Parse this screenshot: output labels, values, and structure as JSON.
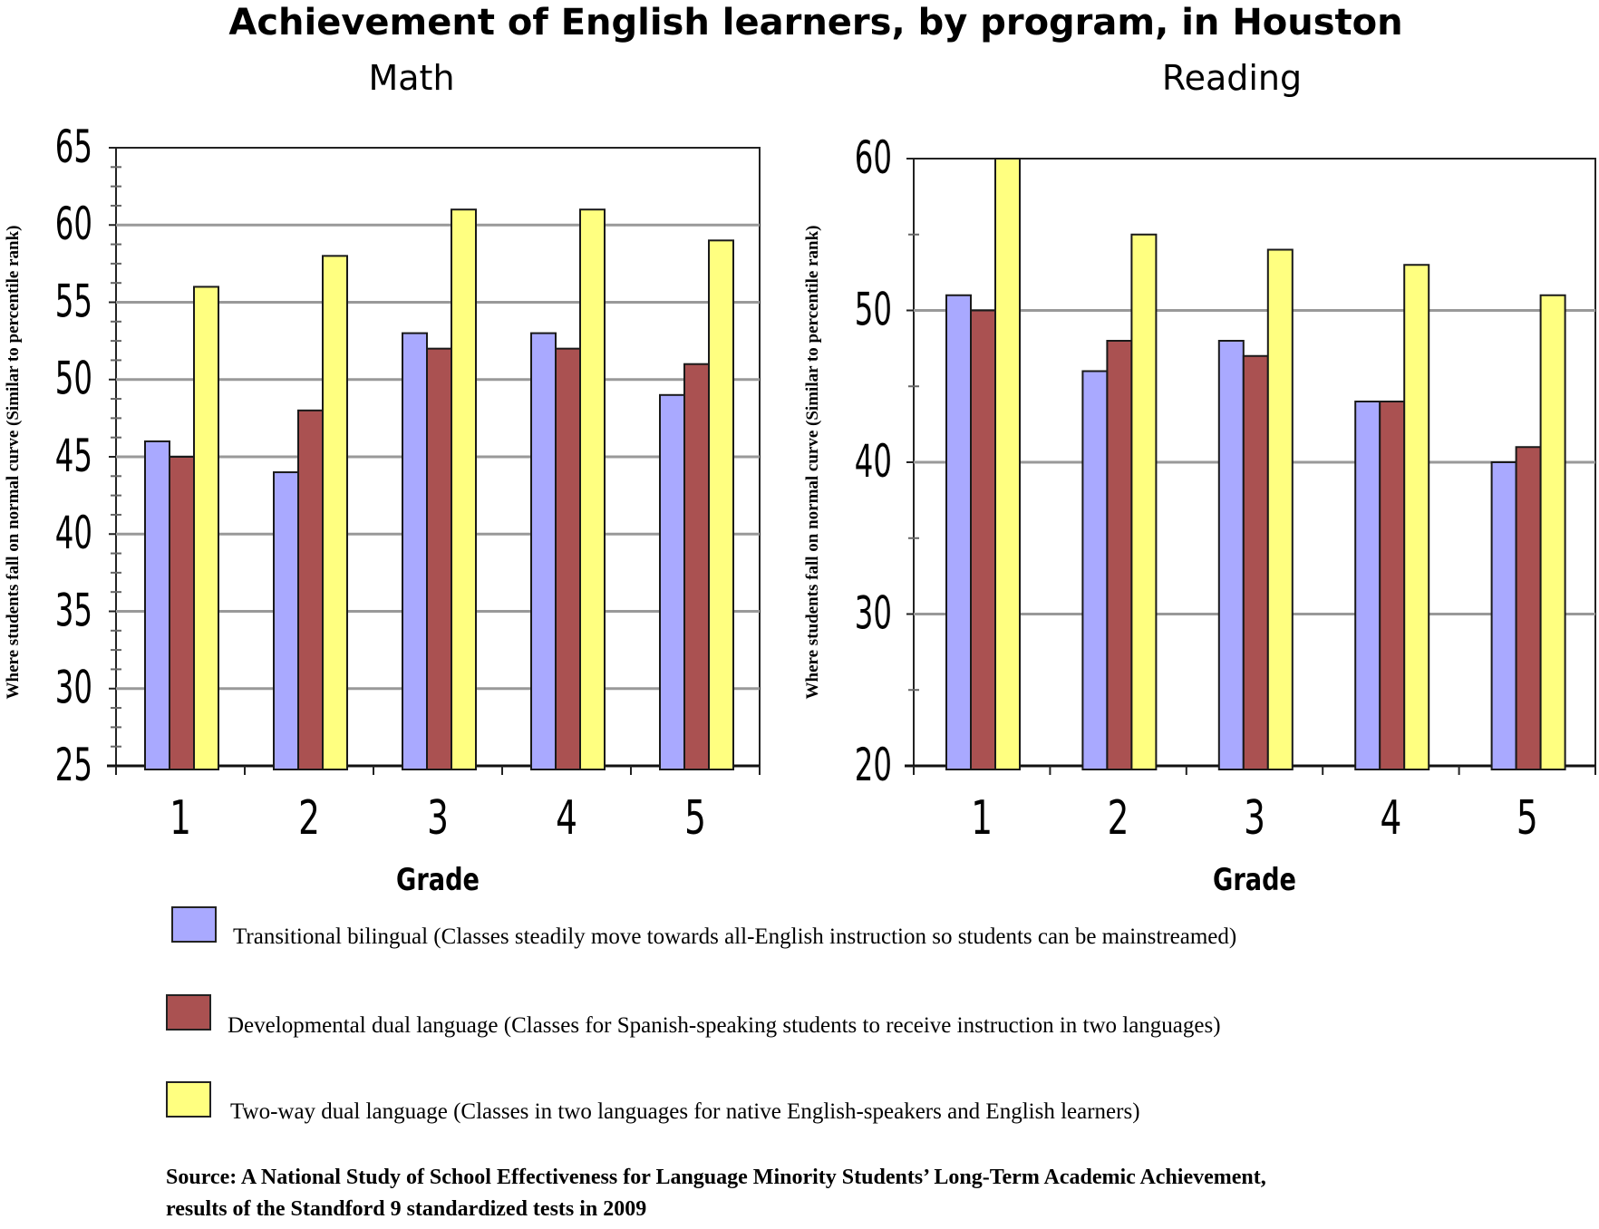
{
  "title": "Achievement of English learners, by program, in Houston",
  "legend": [
    {
      "label": "Transitional bilingual (Classes steadily move towards all-English instruction so students can be mainstreamed)",
      "color": "#a9a9ff"
    },
    {
      "label": "Developmental dual language (Classes for Spanish-speaking students to receive instruction in two languages)",
      "color": "#aa5151"
    },
    {
      "label": "Two-way dual language (Classes in two languages for native English-speakers and English learners)",
      "color": "#ffff80"
    }
  ],
  "source_lines": [
    "Source: A National Study of School Effectiveness for Language Minority Students’ Long-Term Academic Achievement,",
    "results of the Standford 9 standardized tests in 2009"
  ],
  "chart_data": [
    {
      "type": "bar",
      "title": "Math",
      "xlabel": "Grade",
      "ylabel": "Where students fall on normal curve (Similar to percentile rank)",
      "categories": [
        "1",
        "2",
        "3",
        "4",
        "5"
      ],
      "ylim": [
        25,
        65
      ],
      "yticks": [
        "25",
        "30",
        "35",
        "40",
        "45",
        "50",
        "55",
        "60",
        "65"
      ],
      "grid": true,
      "series": [
        {
          "name": "Transitional bilingual",
          "color": "#a9a9ff",
          "values": [
            46,
            44,
            53,
            53,
            49
          ]
        },
        {
          "name": "Developmental dual language",
          "color": "#aa5151",
          "values": [
            45,
            48,
            52,
            52,
            51
          ]
        },
        {
          "name": "Two-way dual language",
          "color": "#ffff80",
          "values": [
            56,
            58,
            61,
            61,
            59
          ]
        }
      ]
    },
    {
      "type": "bar",
      "title": "Reading",
      "xlabel": "Grade",
      "ylabel": "Where students fall on normal curve (Similar to percentile rank)",
      "categories": [
        "1",
        "2",
        "3",
        "4",
        "5"
      ],
      "ylim": [
        20,
        60
      ],
      "yticks": [
        "20",
        "30",
        "40",
        "50",
        "60"
      ],
      "grid": true,
      "series": [
        {
          "name": "Transitional bilingual",
          "color": "#a9a9ff",
          "values": [
            51,
            46,
            48,
            44,
            40
          ]
        },
        {
          "name": "Developmental dual language",
          "color": "#aa5151",
          "values": [
            50,
            48,
            47,
            44,
            41
          ]
        },
        {
          "name": "Two-way dual language",
          "color": "#ffff80",
          "values": [
            60,
            55,
            54,
            53,
            51
          ]
        }
      ]
    }
  ]
}
